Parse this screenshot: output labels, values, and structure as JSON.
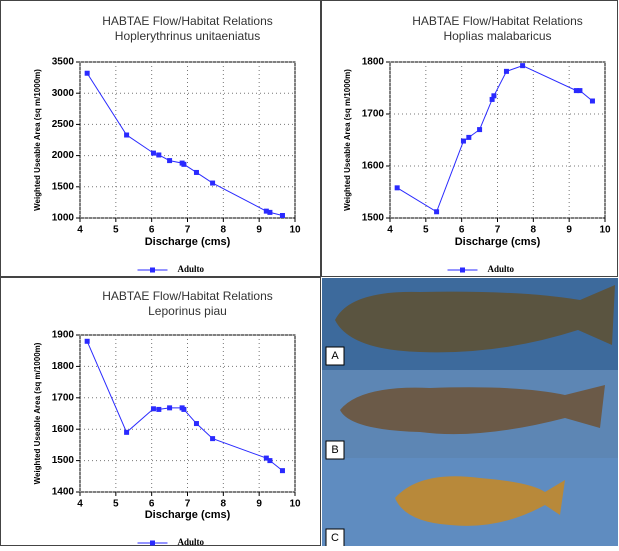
{
  "chart_data": [
    {
      "type": "line",
      "title": "HABTAE Flow/Habitat Relations",
      "subtitle": "Hoplerythrinus unitaeniatus",
      "xlabel": "Discharge (cms)",
      "ylabel": "Weighted Useable Area (sq m/1000m)",
      "x": [
        4.2,
        5.3,
        6.05,
        6.2,
        6.5,
        6.85,
        6.9,
        7.25,
        7.7,
        9.2,
        9.3,
        9.65
      ],
      "series": [
        {
          "name": "Adulto",
          "color": "#2a2aff",
          "values": [
            3320,
            2330,
            2040,
            2010,
            1920,
            1880,
            1860,
            1730,
            1560,
            1110,
            1090,
            1040
          ]
        }
      ],
      "xlim": [
        4,
        10
      ],
      "xticks": [
        4,
        5,
        6,
        7,
        8,
        9,
        10
      ],
      "ylim": [
        1000,
        3500
      ],
      "yticks": [
        1000,
        1500,
        2000,
        2500,
        3000,
        3500
      ],
      "grid": true,
      "legend": "bottom"
    },
    {
      "type": "line",
      "title": "HABTAE Flow/Habitat Relations",
      "subtitle": "Hoplias malabaricus",
      "xlabel": "Discharge (cms)",
      "ylabel": "Weighted Useable Area (sq m/1000m)",
      "x": [
        4.2,
        5.3,
        6.05,
        6.2,
        6.5,
        6.85,
        6.9,
        7.25,
        7.7,
        9.2,
        9.3,
        9.65
      ],
      "series": [
        {
          "name": "Adulto",
          "color": "#2a2aff",
          "values": [
            1558,
            1512,
            1648,
            1655,
            1670,
            1728,
            1735,
            1782,
            1793,
            1745,
            1745,
            1725
          ]
        }
      ],
      "xlim": [
        4,
        10
      ],
      "xticks": [
        4,
        5,
        6,
        7,
        8,
        9,
        10
      ],
      "ylim": [
        1500,
        1800
      ],
      "yticks": [
        1500,
        1600,
        1700,
        1800
      ],
      "grid": true,
      "legend": "bottom"
    },
    {
      "type": "line",
      "title": "HABTAE Flow/Habitat Relations",
      "subtitle": "Leporinus piau",
      "xlabel": "Discharge (cms)",
      "ylabel": "Weighted Useable Area (sq m/1000m)",
      "x": [
        4.2,
        5.3,
        6.05,
        6.2,
        6.5,
        6.85,
        6.9,
        7.25,
        7.7,
        9.2,
        9.3,
        9.65
      ],
      "series": [
        {
          "name": "Adulto",
          "color": "#2a2aff",
          "values": [
            1880,
            1590,
            1665,
            1663,
            1668,
            1668,
            1663,
            1618,
            1570,
            1508,
            1500,
            1468
          ]
        }
      ],
      "xlim": [
        4,
        10
      ],
      "xticks": [
        4,
        5,
        6,
        7,
        8,
        9,
        10
      ],
      "ylim": [
        1400,
        1900
      ],
      "yticks": [
        1400,
        1500,
        1600,
        1700,
        1800,
        1900
      ],
      "grid": true,
      "legend": "bottom"
    }
  ],
  "photo": {
    "labels": [
      "A",
      "B",
      "C"
    ]
  }
}
